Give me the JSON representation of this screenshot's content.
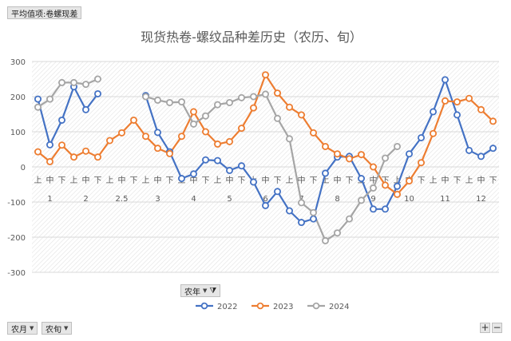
{
  "value_field": "平均值项:卷螺现差",
  "filter_field": {
    "label": "农年"
  },
  "row_fields": [
    {
      "label": "农月"
    },
    {
      "label": "农旬"
    }
  ],
  "zoom": {
    "plus": "+",
    "minus": "−"
  },
  "chart_data": {
    "type": "line",
    "title": "现货热卷-螺纹品种差历史（农历、旬）",
    "ylim": [
      -300,
      300
    ],
    "yticks": [
      -300,
      -200,
      -100,
      0,
      100,
      200,
      300
    ],
    "grid": true,
    "legend_position": "bottom",
    "sub_labels": [
      "上",
      "中",
      "下"
    ],
    "groups": [
      {
        "label": "1",
        "count": 3
      },
      {
        "label": "2",
        "count": 3
      },
      {
        "label": "2.5",
        "count": 3
      },
      {
        "label": "3",
        "count": 3
      },
      {
        "label": "4",
        "count": 3
      },
      {
        "label": "5",
        "count": 3
      },
      {
        "label": "6",
        "count": 3
      },
      {
        "label": "7",
        "count": 3
      },
      {
        "label": "8",
        "count": 3
      },
      {
        "label": "9",
        "count": 3
      },
      {
        "label": "10",
        "count": 3
      },
      {
        "label": "11",
        "count": 3
      },
      {
        "label": "12",
        "count": 3
      }
    ],
    "series": [
      {
        "name": "2022",
        "color": "#4472c4",
        "values": [
          193,
          63,
          133,
          228,
          163,
          208,
          null,
          null,
          null,
          203,
          98,
          43,
          -33,
          -20,
          20,
          18,
          -10,
          3,
          -43,
          -110,
          -70,
          -125,
          -158,
          -148,
          -18,
          28,
          30,
          -33,
          -120,
          -120,
          -55,
          37,
          83,
          157,
          248,
          148,
          47,
          30,
          53
        ]
      },
      {
        "name": "2023",
        "color": "#ed7d31",
        "values": [
          43,
          15,
          62,
          28,
          45,
          28,
          75,
          97,
          133,
          87,
          53,
          38,
          87,
          157,
          100,
          65,
          72,
          110,
          168,
          262,
          210,
          170,
          148,
          97,
          58,
          37,
          23,
          35,
          0,
          -52,
          -78,
          -40,
          12,
          95,
          188,
          185,
          195,
          163,
          130
        ]
      },
      {
        "name": "2024",
        "color": "#a5a5a5",
        "values": [
          170,
          193,
          240,
          240,
          235,
          250,
          null,
          null,
          null,
          200,
          190,
          183,
          185,
          122,
          145,
          177,
          183,
          197,
          200,
          207,
          138,
          80,
          -102,
          -130,
          -210,
          -188,
          -148,
          -95,
          -60,
          25,
          58,
          null,
          null,
          null,
          null,
          null,
          null,
          null,
          null
        ]
      }
    ]
  }
}
